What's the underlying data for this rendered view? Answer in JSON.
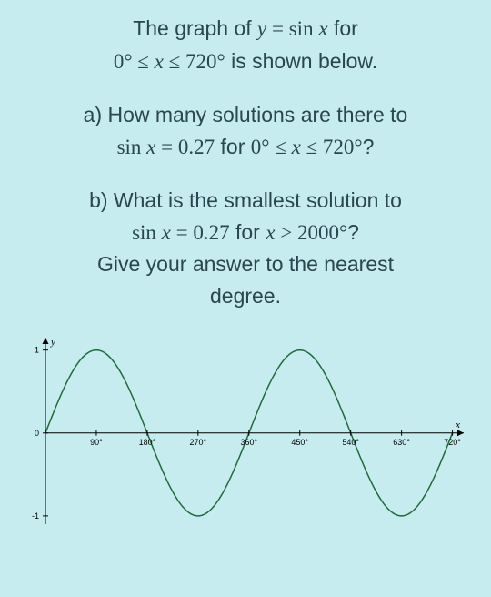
{
  "intro": {
    "line1_pre": "The graph of ",
    "line1_eq_lhs_var": "y",
    "line1_eq_eq": " = ",
    "line1_eq_func": "sin ",
    "line1_eq_arg": "x",
    "line1_post": " for",
    "line2_range_lo": "0°",
    "line2_le1": " ≤ ",
    "line2_var": "x",
    "line2_le2": " ≤ ",
    "line2_range_hi": "720°",
    "line2_post": " is shown below."
  },
  "qa": {
    "label": "a) ",
    "line1": "How many solutions are there to",
    "eq_func": "sin ",
    "eq_arg": "x",
    "eq_eq": " = ",
    "eq_val": "0.27",
    "eq_for": " for ",
    "range_lo": "0°",
    "le1": " ≤ ",
    "range_var": "x",
    "le2": " ≤ ",
    "range_hi": "720°",
    "qmark": "?"
  },
  "qb": {
    "label": "b) ",
    "line1": "What is the smallest solution to",
    "eq_func": "sin ",
    "eq_arg": "x",
    "eq_eq": " = ",
    "eq_val": "0.27",
    "eq_for": " for ",
    "range_var": "x",
    "gt": " > ",
    "range_hi": "2000°",
    "qmark": "?",
    "line3": "Give your answer to the nearest",
    "line4": "degree."
  },
  "chart": {
    "type": "line",
    "curve_color": "#1f6b3a",
    "curve_width": 1.5,
    "axis_color": "#000000",
    "axis_width": 1,
    "background_color": "#c7ecef",
    "text_color": "#000000",
    "tick_fontsize": 9,
    "xlim": [
      0,
      740
    ],
    "ylim": [
      -1.1,
      1.15
    ],
    "x_ticks": [
      90,
      180,
      270,
      360,
      450,
      540,
      630,
      720
    ],
    "x_tick_labels": [
      "90°",
      "180°",
      "270°",
      "360°",
      "450°",
      "540°",
      "630°",
      "720°"
    ],
    "y_ticks": [
      -1,
      0,
      1
    ],
    "y_tick_labels": [
      "-1",
      "0",
      "1"
    ],
    "y_label": "y",
    "x_label": "x",
    "function": "sin(x_deg)",
    "x_label_fontstyle": "italic"
  }
}
